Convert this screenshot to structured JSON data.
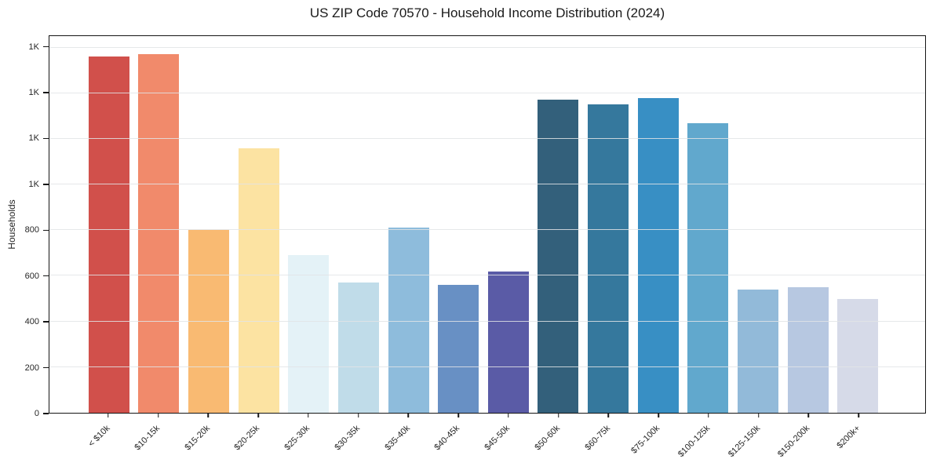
{
  "chart_data": {
    "type": "bar",
    "title": "US ZIP Code 70570 - Household Income Distribution (2024)",
    "xlabel": "",
    "ylabel": "Households",
    "ylim": [
      0,
      1650
    ],
    "grid": "horizontal",
    "legend": "none",
    "categories": [
      "< $10k",
      "$10-15k",
      "$15-20k",
      "$20-25k",
      "$25-30k",
      "$30-35k",
      "$35-40k",
      "$40-45k",
      "$45-50k",
      "$50-60k",
      "$60-75k",
      "$75-100k",
      "$100-125k",
      "$125-150k",
      "$150-200k",
      "$200k+"
    ],
    "values": [
      1560,
      1570,
      800,
      1160,
      690,
      570,
      810,
      560,
      620,
      1370,
      1350,
      1380,
      1270,
      540,
      550,
      500
    ],
    "bar_colors": [
      "#d1504b",
      "#f18a6b",
      "#f9ba72",
      "#fce3a2",
      "#e4f2f7",
      "#c0dce9",
      "#8ebcdc",
      "#6890c4",
      "#5a5ba6",
      "#33607b",
      "#35789d",
      "#388fc4",
      "#61a8cd",
      "#92bad9",
      "#b7c8e1",
      "#d6dae8"
    ],
    "yticks": [
      {
        "value": 0,
        "label": "0"
      },
      {
        "value": 200,
        "label": "200"
      },
      {
        "value": 400,
        "label": "400"
      },
      {
        "value": 600,
        "label": "600"
      },
      {
        "value": 800,
        "label": "800"
      },
      {
        "value": 1000,
        "label": "1K"
      },
      {
        "value": 1200,
        "label": "1K"
      },
      {
        "value": 1400,
        "label": "1K"
      },
      {
        "value": 1600,
        "label": "1K"
      }
    ],
    "axis_color": "#151515",
    "gridline_color": "#e2e4e6",
    "text_color": "#262626",
    "background": "#ffffff"
  }
}
